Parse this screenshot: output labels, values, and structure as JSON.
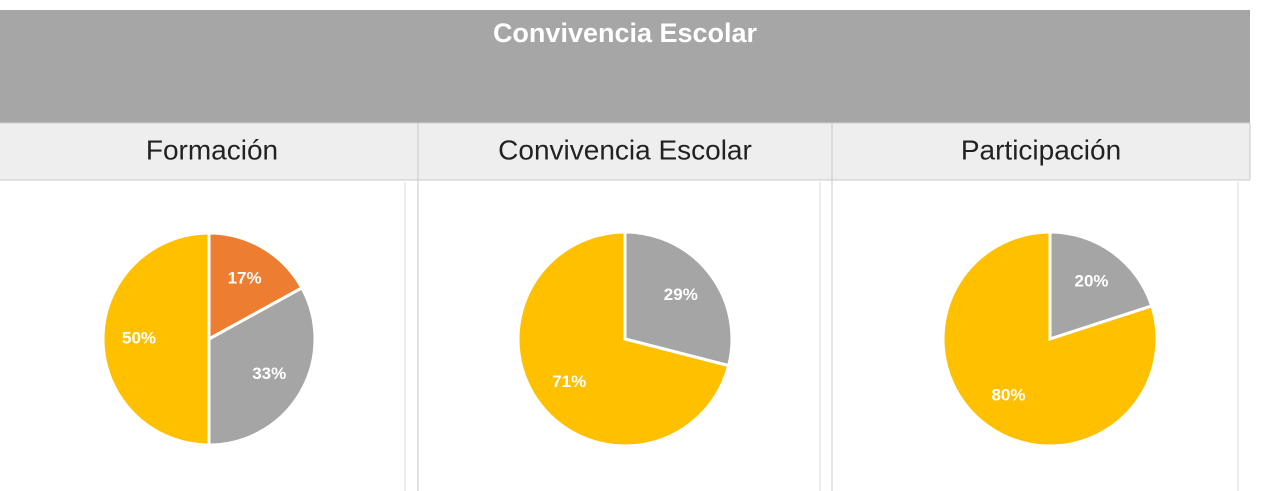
{
  "title": "Convivencia Escolar",
  "chart_data": [
    {
      "type": "pie",
      "title": "Formación",
      "values": [
        17,
        33,
        50
      ],
      "value_labels": [
        "17%",
        "33%",
        "50%"
      ],
      "colors": [
        "#ed7d31",
        "#a5a5a5",
        "#ffc000"
      ]
    },
    {
      "type": "pie",
      "title": "Convivencia Escolar",
      "values": [
        29,
        71
      ],
      "value_labels": [
        "29%",
        "71%"
      ],
      "colors": [
        "#a5a5a5",
        "#ffc000"
      ]
    },
    {
      "type": "pie",
      "title": "Participación",
      "values": [
        20,
        80
      ],
      "value_labels": [
        "20%",
        "80%"
      ],
      "colors": [
        "#a5a5a5",
        "#ffc000"
      ]
    }
  ]
}
